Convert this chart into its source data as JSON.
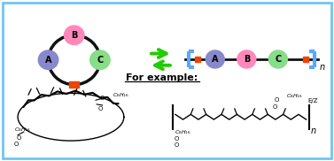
{
  "bg_color": "#ffffff",
  "border_color": "#6ec6f0",
  "circle_A_color": "#8888cc",
  "circle_B_color": "#ff88bb",
  "circle_C_color": "#88dd88",
  "rect_color": "#ee4400",
  "ring_color": "#111111",
  "arrow_color": "#22cc00",
  "bracket_color": "#55aaff",
  "line_color": "#111111",
  "title_text": "For example:",
  "label_A": "A",
  "label_B": "B",
  "label_C": "C",
  "label_n": "n",
  "label_EZ": "E/Z"
}
